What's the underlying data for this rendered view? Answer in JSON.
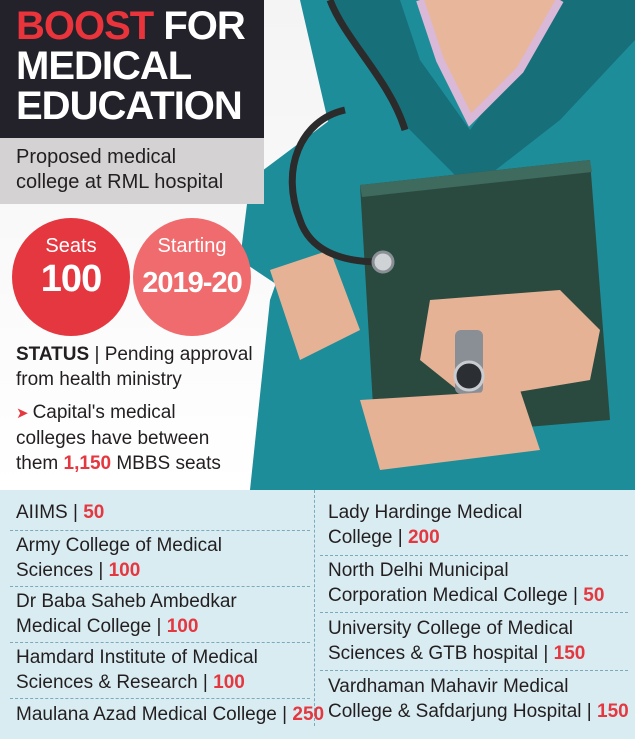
{
  "headline": {
    "word1": "BOOST",
    "word2": " FOR",
    "line2": "MEDICAL",
    "line3": "EDUCATION"
  },
  "proposed": {
    "line1": "Proposed medical",
    "line2": "college at RML hospital"
  },
  "seats": {
    "label": "Seats",
    "value": "100"
  },
  "starting": {
    "label": "Starting",
    "value": "2019-20"
  },
  "status": {
    "label": "STATUS",
    "sep": " | ",
    "line1": "Pending approval",
    "line2": "from health ministry"
  },
  "mbbs": {
    "line1": "Capital's medical",
    "line2": "colleges have between",
    "line3_pre": "them ",
    "line3_num": "1,150",
    "line3_post": " MBBS seats"
  },
  "colleges": {
    "left": [
      {
        "lines": [
          "AIIMS"
        ],
        "sep": " | ",
        "seats": "50"
      },
      {
        "lines": [
          "Army College of Medical",
          "Sciences"
        ],
        "sep": " | ",
        "seats": "100"
      },
      {
        "lines": [
          "Dr Baba Saheb Ambedkar",
          "Medical College"
        ],
        "sep": " | ",
        "seats": "100"
      },
      {
        "lines": [
          "Hamdard Institute of Medical",
          "Sciences & Research"
        ],
        "sep": " | ",
        "seats": "100"
      },
      {
        "lines": [
          "Maulana Azad Medical College"
        ],
        "sep": " | ",
        "seats": "250"
      }
    ],
    "right": [
      {
        "lines": [
          "Lady Hardinge Medical",
          "College"
        ],
        "sep": " | ",
        "seats": "200"
      },
      {
        "lines": [
          "North Delhi Municipal",
          "Corporation Medical College"
        ],
        "sep": " | ",
        "seats": "50"
      },
      {
        "lines": [
          "University College of Medical",
          "Sciences & GTB hospital"
        ],
        "sep": " | ",
        "seats": "150"
      },
      {
        "lines": [
          "Vardhaman Mahavir Medical",
          "College & Safdarjung Hospital"
        ],
        "sep": " | ",
        "seats": "150"
      }
    ]
  },
  "colors": {
    "red": "#e5373f",
    "pink": "#f06b6e",
    "dark": "#232129",
    "grey": "#d4d2d3",
    "panel": "#d9ecf2"
  },
  "icons": {
    "arrow": "triangle-right-arrow-icon"
  }
}
